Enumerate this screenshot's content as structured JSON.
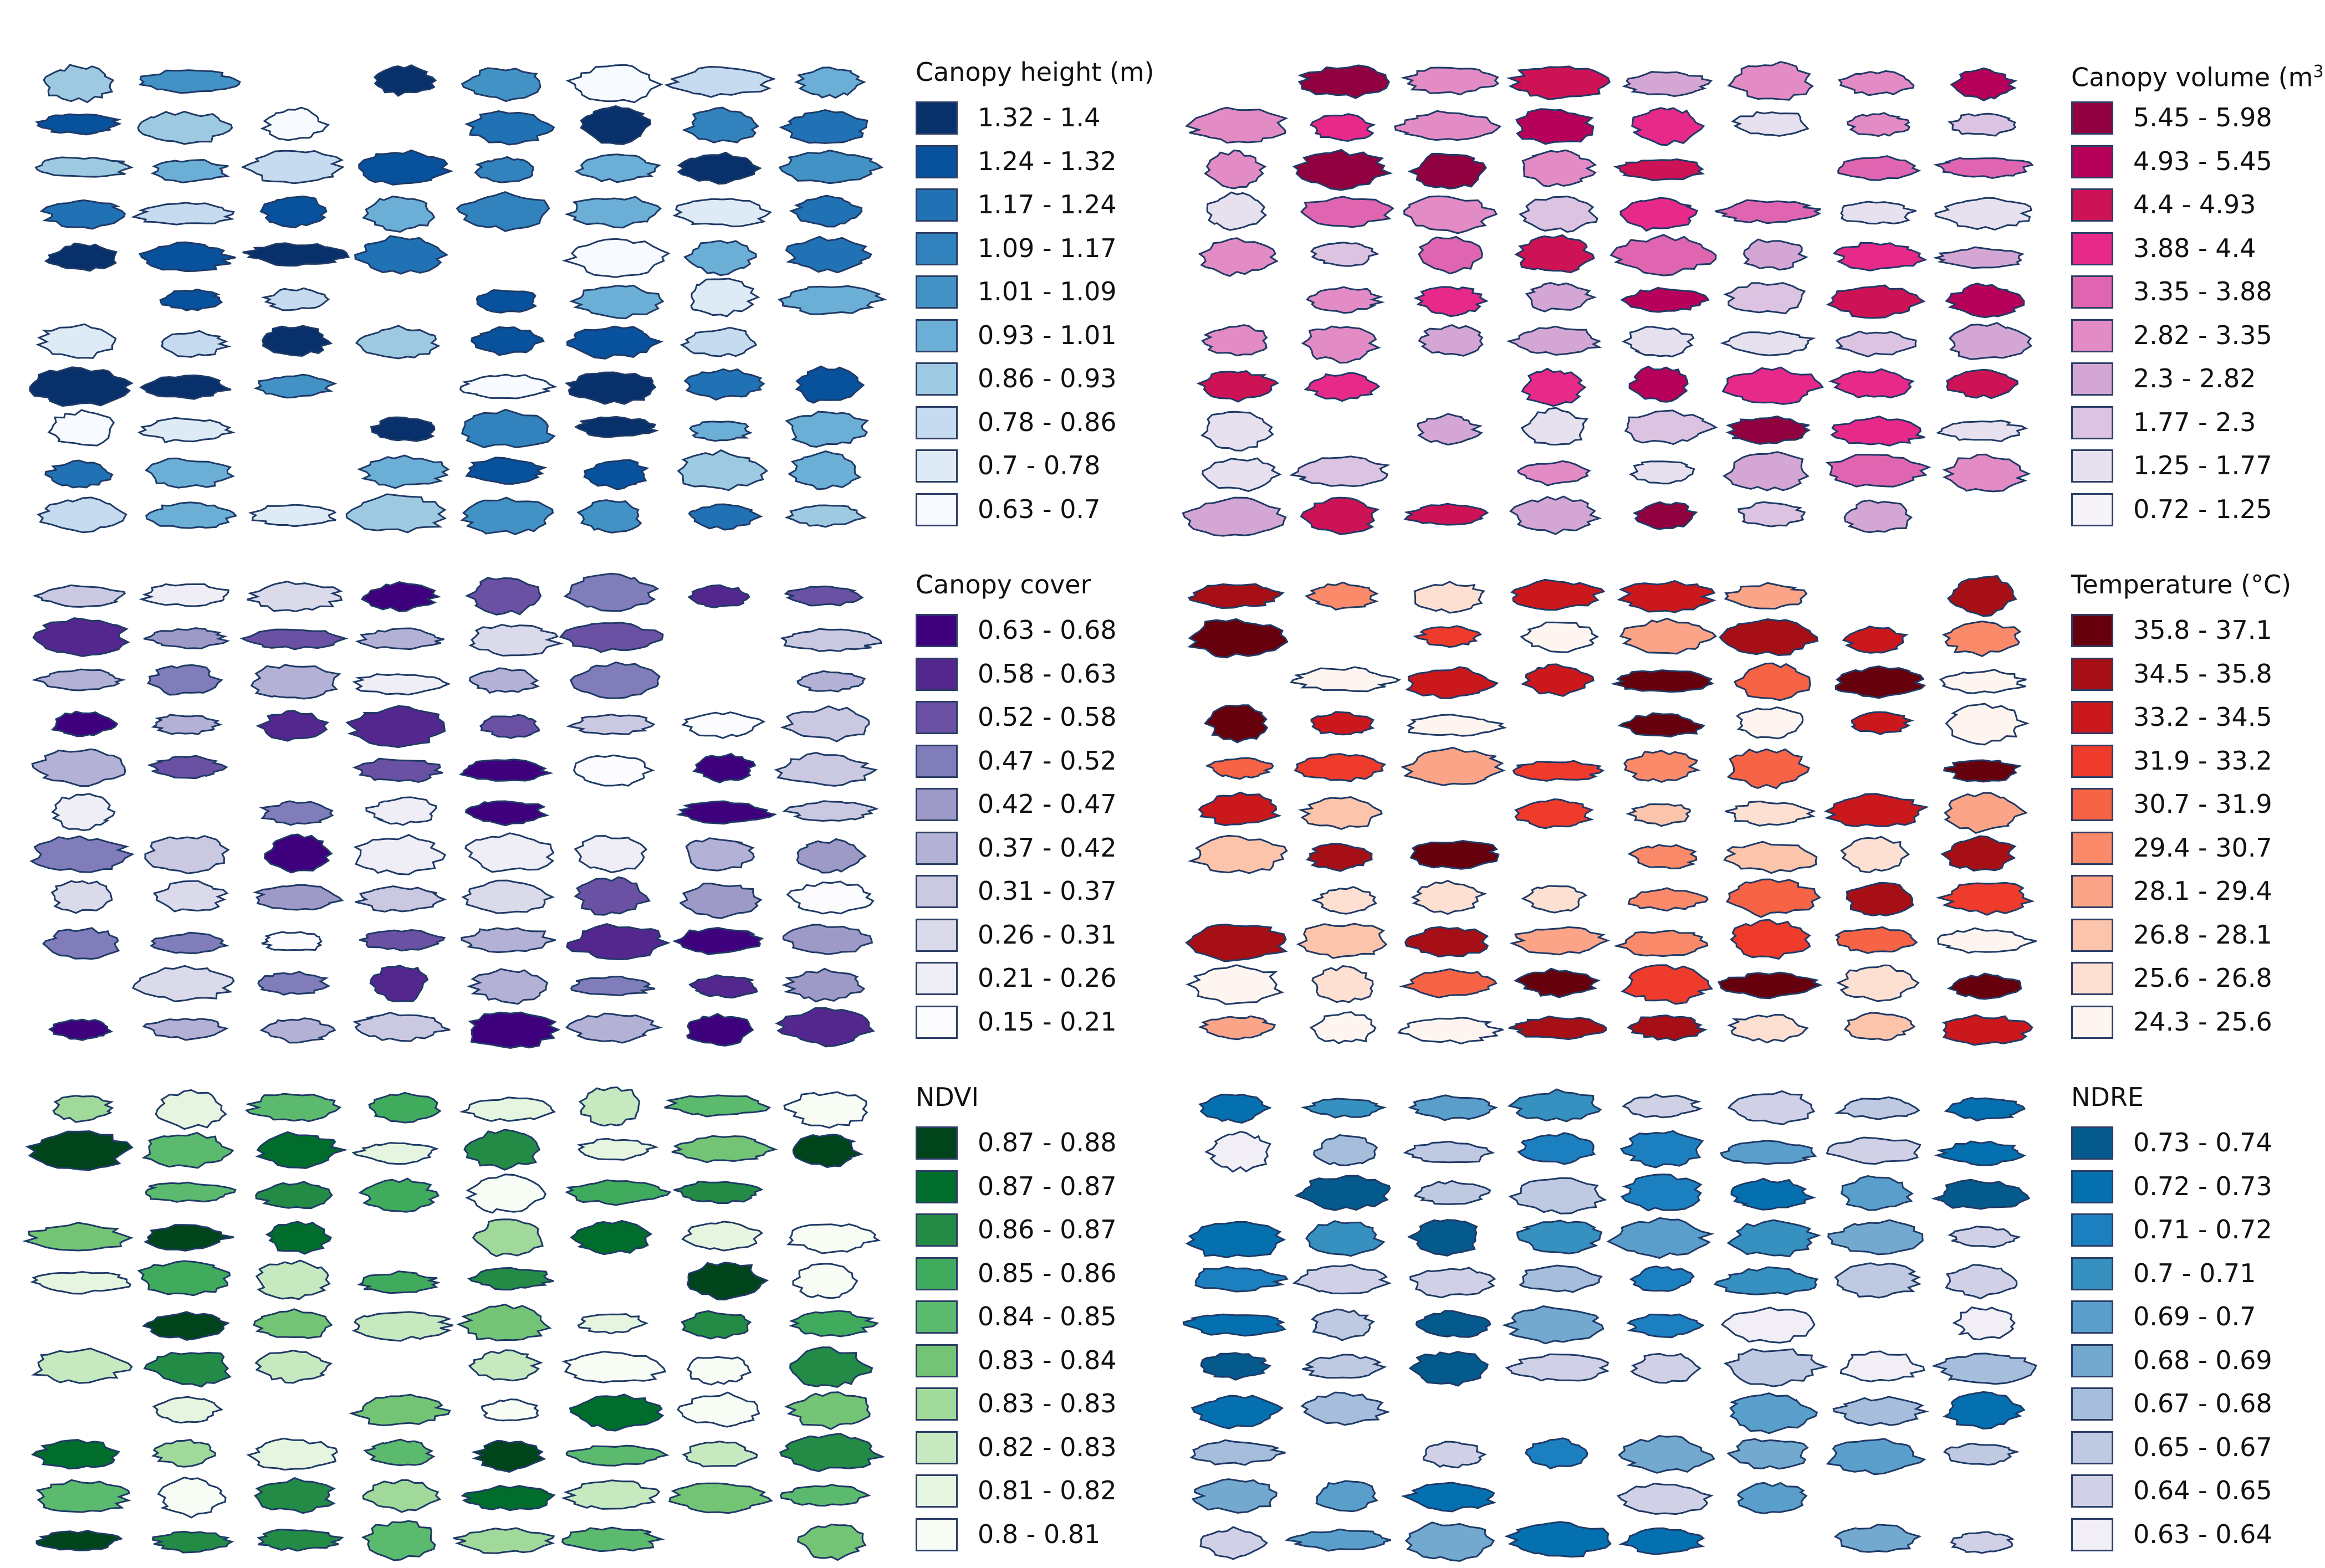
{
  "panels": [
    {
      "id": "canopy-height",
      "title": "Canopy height (m)",
      "title_sup": "",
      "classes": [
        {
          "label": "1.32 - 1.4",
          "color": "#08306b"
        },
        {
          "label": "1.24 - 1.32",
          "color": "#08519c"
        },
        {
          "label": "1.17 - 1.24",
          "color": "#2171b5"
        },
        {
          "label": "1.09 - 1.17",
          "color": "#3182bd"
        },
        {
          "label": "1.01 - 1.09",
          "color": "#4292c6"
        },
        {
          "label": "0.93 - 1.01",
          "color": "#6baed6"
        },
        {
          "label": "0.86 - 0.93",
          "color": "#9ecae1"
        },
        {
          "label": "0.78 - 0.86",
          "color": "#c6dbef"
        },
        {
          "label": "0.7 - 0.78",
          "color": "#deebf7"
        },
        {
          "label": "0.63 - 0.7",
          "color": "#f7fbff"
        }
      ]
    },
    {
      "id": "canopy-volume",
      "title": "Canopy volume (m",
      "title_sup": "3",
      "title_suffix": ")",
      "classes": [
        {
          "label": "5.45 - 5.98",
          "color": "#91003f"
        },
        {
          "label": "4.93 - 5.45",
          "color": "#b7005a"
        },
        {
          "label": "4.4 - 4.93",
          "color": "#ce1256"
        },
        {
          "label": "3.88 - 4.4",
          "color": "#e7298a"
        },
        {
          "label": "3.35 - 3.88",
          "color": "#df65b0"
        },
        {
          "label": "2.82 - 3.35",
          "color": "#e38bc5"
        },
        {
          "label": "2.3 - 2.82",
          "color": "#d4a6d3"
        },
        {
          "label": "1.77 - 2.3",
          "color": "#dcc3e2"
        },
        {
          "label": "1.25 - 1.77",
          "color": "#e7e1ef"
        },
        {
          "label": "0.72 - 1.25",
          "color": "#f7f4f9"
        }
      ]
    },
    {
      "id": "canopy-cover",
      "title": "Canopy cover",
      "title_sup": "",
      "classes": [
        {
          "label": "0.63 - 0.68",
          "color": "#3f007d"
        },
        {
          "label": "0.58 - 0.63",
          "color": "#54278f"
        },
        {
          "label": "0.52 - 0.58",
          "color": "#6a51a3"
        },
        {
          "label": "0.47 - 0.52",
          "color": "#807dba"
        },
        {
          "label": "0.42 - 0.47",
          "color": "#9e9ac8"
        },
        {
          "label": "0.37 - 0.42",
          "color": "#b4b1d6"
        },
        {
          "label": "0.31 - 0.37",
          "color": "#cbc9e2"
        },
        {
          "label": "0.26 - 0.31",
          "color": "#dadaeb"
        },
        {
          "label": "0.21 - 0.26",
          "color": "#efedf5"
        },
        {
          "label": "0.15 - 0.21",
          "color": "#fcfbfd"
        }
      ]
    },
    {
      "id": "temperature",
      "title": "Temperature (°C)",
      "title_sup": "",
      "classes": [
        {
          "label": "35.8 - 37.1",
          "color": "#67000d"
        },
        {
          "label": "34.5 - 35.8",
          "color": "#a50f15"
        },
        {
          "label": "33.2 - 34.5",
          "color": "#cb181d"
        },
        {
          "label": "31.9 - 33.2",
          "color": "#ef3b2c"
        },
        {
          "label": "30.7 - 31.9",
          "color": "#f76345"
        },
        {
          "label": "29.4 - 30.7",
          "color": "#fb8a6a"
        },
        {
          "label": "28.1 - 29.4",
          "color": "#fca487"
        },
        {
          "label": "26.8 - 28.1",
          "color": "#fcc4ab"
        },
        {
          "label": "25.6 - 26.8",
          "color": "#fee0d2"
        },
        {
          "label": "24.3 - 25.6",
          "color": "#fff5f0"
        }
      ]
    },
    {
      "id": "ndvi",
      "title": "NDVI",
      "title_sup": "",
      "classes": [
        {
          "label": "0.87 - 0.88",
          "color": "#00441b"
        },
        {
          "label": "0.87 - 0.87",
          "color": "#006d2c"
        },
        {
          "label": "0.86 - 0.87",
          "color": "#238b45"
        },
        {
          "label": "0.85 - 0.86",
          "color": "#41ab5d"
        },
        {
          "label": "0.84 - 0.85",
          "color": "#5cba6e"
        },
        {
          "label": "0.83 - 0.84",
          "color": "#74c476"
        },
        {
          "label": "0.83 - 0.83",
          "color": "#a1d99b"
        },
        {
          "label": "0.82 - 0.83",
          "color": "#c7e9c0"
        },
        {
          "label": "0.81 - 0.82",
          "color": "#e5f5e0"
        },
        {
          "label": "0.8 - 0.81",
          "color": "#f7fcf5"
        }
      ]
    },
    {
      "id": "ndre",
      "title": "NDRE",
      "title_sup": "",
      "classes": [
        {
          "label": "0.73 - 0.74",
          "color": "#045a8d"
        },
        {
          "label": "0.72 - 0.73",
          "color": "#0570b0"
        },
        {
          "label": "0.71 - 0.72",
          "color": "#1c7fc0"
        },
        {
          "label": "0.7 - 0.71",
          "color": "#3690c0"
        },
        {
          "label": "0.69 - 0.7",
          "color": "#5a9fcc"
        },
        {
          "label": "0.68 - 0.69",
          "color": "#74a9cf"
        },
        {
          "label": "0.67 - 0.68",
          "color": "#a6bddb"
        },
        {
          "label": "0.65 - 0.67",
          "color": "#bfc9e2"
        },
        {
          "label": "0.64 - 0.65",
          "color": "#d0d1e6"
        },
        {
          "label": "0.63 - 0.64",
          "color": "#f1eef6"
        }
      ]
    }
  ]
}
